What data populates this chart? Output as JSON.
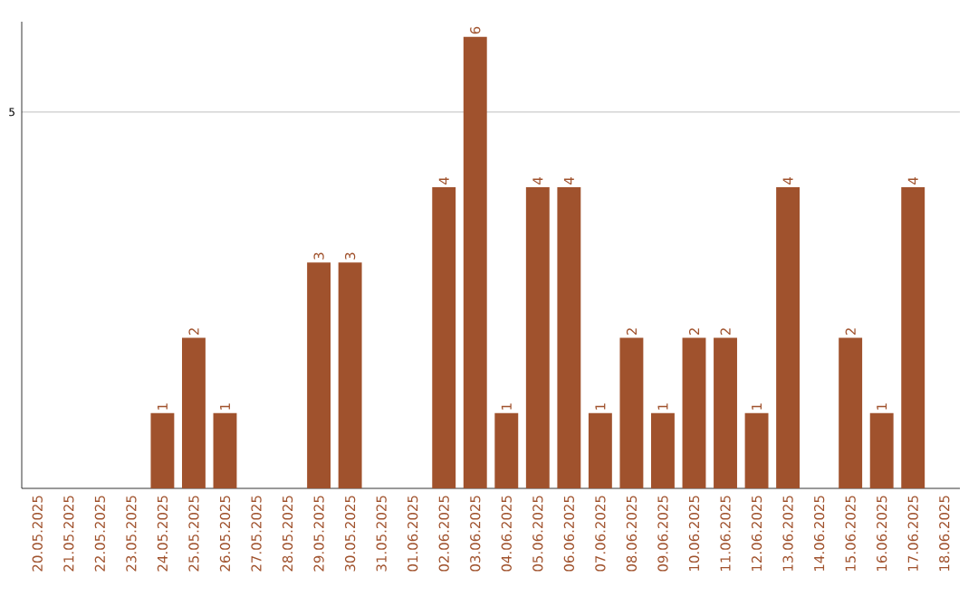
{
  "chart_data": {
    "type": "bar",
    "categories": [
      "20.05.2025",
      "21.05.2025",
      "22.05.2025",
      "23.05.2025",
      "24.05.2025",
      "25.05.2025",
      "26.05.2025",
      "27.05.2025",
      "28.05.2025",
      "29.05.2025",
      "30.05.2025",
      "31.05.2025",
      "01.06.2025",
      "02.06.2025",
      "03.06.2025",
      "04.06.2025",
      "05.06.2025",
      "06.06.2025",
      "07.06.2025",
      "08.06.2025",
      "09.06.2025",
      "10.06.2025",
      "11.06.2025",
      "12.06.2025",
      "13.06.2025",
      "14.06.2025",
      "15.06.2025",
      "16.06.2025",
      "17.06.2025",
      "18.06.2025"
    ],
    "values": [
      0,
      0,
      0,
      0,
      1,
      2,
      1,
      0,
      0,
      3,
      3,
      0,
      0,
      4,
      6,
      1,
      4,
      4,
      1,
      2,
      1,
      2,
      2,
      1,
      4,
      0,
      2,
      1,
      4,
      0
    ],
    "value_labels": [
      null,
      null,
      null,
      null,
      "1",
      "2",
      "1",
      null,
      null,
      "3",
      "3",
      null,
      null,
      "4",
      "6",
      "1",
      "4",
      "4",
      "1",
      "2",
      "1",
      "2",
      "2",
      "1",
      "4",
      null,
      "2",
      "1",
      "4",
      null
    ],
    "color": "#a0522d",
    "ylim": [
      0,
      6.2
    ],
    "yticks": [
      5
    ],
    "grid": "y"
  }
}
